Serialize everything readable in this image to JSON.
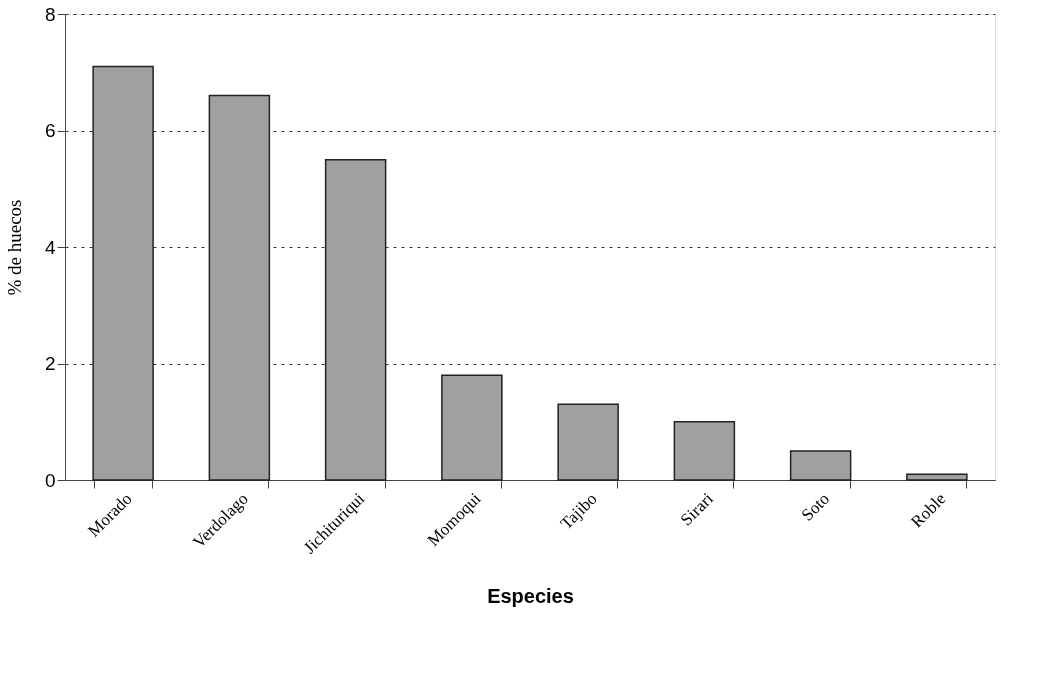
{
  "chart_data": {
    "type": "bar",
    "xlabel": "Especies",
    "ylabel": "% de huecos",
    "categories": [
      "Morado",
      "Verdolago",
      "Jichituriqui",
      "Momoqui",
      "Tajibo",
      "Sirari",
      "Soto",
      "Roble"
    ],
    "values": [
      7.1,
      6.6,
      5.5,
      1.8,
      1.3,
      1.0,
      0.5,
      0.1
    ],
    "color": "#a0a0a0",
    "ylim": [
      0,
      8
    ],
    "yticks": [
      0,
      2,
      4,
      6,
      8
    ],
    "grid": "y",
    "legend": false
  }
}
